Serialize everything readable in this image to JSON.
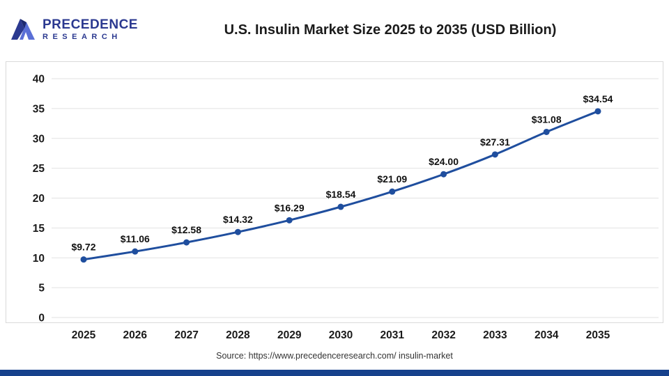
{
  "header": {
    "logo": {
      "line1": "PRECEDENCE",
      "line2": "RESEARCH"
    },
    "title": "U.S. Insulin Market Size 2025 to 2035 (USD Billion)"
  },
  "footer": {
    "source": "Source: https://www.precedenceresearch.com/ insulin-market"
  },
  "colors": {
    "line": "#1f4e9e",
    "marker": "#1f4e9e",
    "grid": "#e2e2e2",
    "border": "#d9d9d9",
    "axis_text": "#1a1a1a",
    "label_text": "#111111",
    "logo_blue": "#2b3990",
    "accent_bar": "#16418c"
  },
  "chart_data": {
    "type": "line",
    "title": "U.S. Insulin Market Size 2025 to 2035 (USD Billion)",
    "categories": [
      "2025",
      "2026",
      "2027",
      "2028",
      "2029",
      "2030",
      "2031",
      "2032",
      "2033",
      "2034",
      "2035"
    ],
    "values": [
      9.72,
      11.06,
      12.58,
      14.32,
      16.29,
      18.54,
      21.09,
      24.0,
      27.31,
      31.08,
      34.54
    ],
    "point_labels": [
      "$9.72",
      "$11.06",
      "$12.58",
      "$14.32",
      "$16.29",
      "$18.54",
      "$21.09",
      "$24.00",
      "$27.31",
      "$31.08",
      "$34.54"
    ],
    "xlabel": "",
    "ylabel": "",
    "ylim": [
      0,
      40
    ],
    "yticks": [
      0,
      5,
      10,
      15,
      20,
      25,
      30,
      35,
      40
    ],
    "grid": true,
    "legend": "none"
  }
}
